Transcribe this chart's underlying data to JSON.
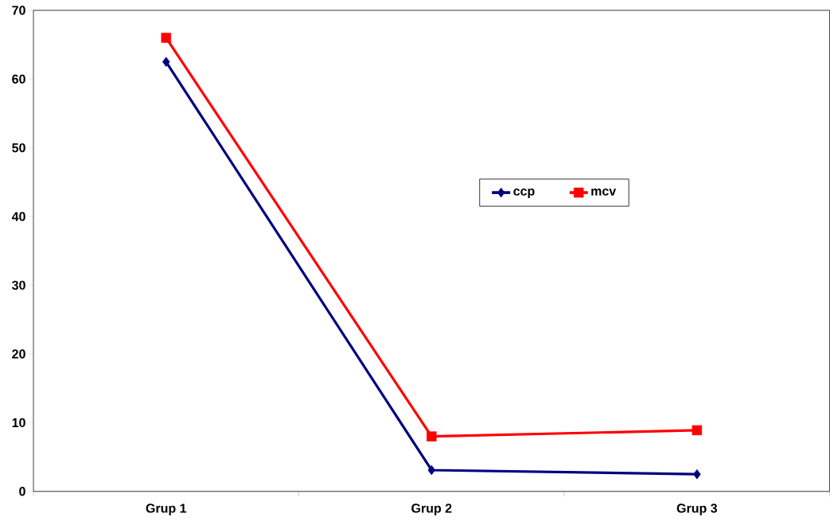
{
  "chart_data": {
    "type": "line",
    "categories": [
      "Grup 1",
      "Grup 2",
      "Grup 3"
    ],
    "series": [
      {
        "name": "ccp",
        "color": "#000080",
        "marker": "diamond",
        "values": [
          62.5,
          3.1,
          2.5
        ]
      },
      {
        "name": "mcv",
        "color": "#ff0000",
        "marker": "square",
        "values": [
          66.0,
          8.0,
          8.9
        ]
      }
    ],
    "ylim": [
      0,
      70
    ],
    "yticks": [
      0,
      10,
      20,
      30,
      40,
      50,
      60,
      70
    ],
    "legend": "right",
    "grid": false,
    "line_style": "solid"
  }
}
